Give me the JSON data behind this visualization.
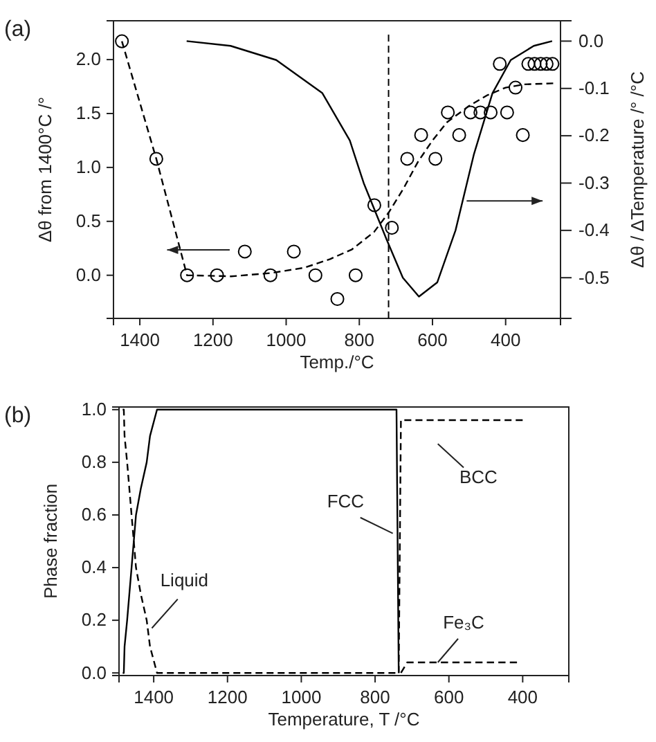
{
  "chart_data": [
    {
      "type": "scatter",
      "title": "(a)",
      "xlabel": "Temp./°C",
      "ylabel": "Δθ  from 1400°C /°",
      "y2label": "Δθ / ΔTemperature  /° /°C",
      "legend": false,
      "grid": false,
      "xlim": [
        1472,
        250
      ],
      "xticks": [
        1400,
        1200,
        1000,
        800,
        600,
        400
      ],
      "ylim": [
        -0.4,
        2.36
      ],
      "yticks": [
        {
          "value": 0,
          "label": "0.0"
        },
        {
          "value": 0.5,
          "label": "0.5"
        },
        {
          "value": 1,
          "label": "1.0"
        },
        {
          "value": 1.5,
          "label": "1.5"
        },
        {
          "value": 2,
          "label": "2.0"
        }
      ],
      "y2lim": [
        -0.586,
        0.043
      ],
      "y2ticks": [
        {
          "value": 0,
          "label": "0.0"
        },
        {
          "value": -0.1,
          "label": "-0.1"
        },
        {
          "value": -0.2,
          "label": "-0.2"
        },
        {
          "value": -0.3,
          "label": "-0.3"
        },
        {
          "value": -0.4,
          "label": "-0.4"
        },
        {
          "value": -0.5,
          "label": "-0.5"
        }
      ],
      "ref_lines": [
        {
          "axis": "x",
          "value": 720,
          "line_style": "dashed",
          "color": "#000000"
        }
      ],
      "series": [
        {
          "type": "scatter",
          "marker": "circle",
          "color": "#000000",
          "x": [
            1449,
            1355,
            1271,
            1189,
            1113,
            1043,
            979,
            920,
            860,
            810,
            759,
            711,
            669,
            631,
            592,
            558,
            527,
            496,
            469,
            441,
            416,
            396,
            373,
            353,
            338,
            321,
            304,
            288,
            272
          ],
          "values": [
            2.17,
            1.08,
            0,
            0,
            0.22,
            0,
            0.22,
            0,
            -0.22,
            0,
            0.65,
            0.44,
            1.08,
            1.3,
            1.08,
            1.51,
            1.3,
            1.51,
            1.51,
            1.51,
            1.96,
            1.51,
            1.74,
            1.3,
            1.96,
            1.96,
            1.96,
            1.96,
            1.96
          ]
        },
        {
          "type": "line",
          "marker": "none",
          "line_style": "dashed",
          "color": "#000000",
          "x": [
            1449,
            1355,
            1271,
            1150,
            1043,
            950,
            880,
            820,
            760,
            720,
            680,
            640,
            600,
            560,
            500,
            450,
            400,
            350,
            270
          ],
          "values": [
            2.17,
            1.08,
            0,
            -0.01,
            0.02,
            0.07,
            0.15,
            0.24,
            0.4,
            0.58,
            0.8,
            1.05,
            1.25,
            1.42,
            1.57,
            1.67,
            1.74,
            1.77,
            1.78
          ]
        },
        {
          "type": "line",
          "marker": "none",
          "line_style": "solid",
          "axis": "y2",
          "color": "#000000",
          "x": [
            1272,
            1152,
            1027,
            901,
            826,
            788,
            725,
            681,
            637,
            587,
            537,
            487,
            436,
            386,
            323,
            273
          ],
          "values": [
            0,
            -0.01,
            -0.04,
            -0.11,
            -0.21,
            -0.3,
            -0.42,
            -0.5,
            -0.54,
            -0.51,
            -0.4,
            -0.24,
            -0.11,
            -0.04,
            -0.01,
            0
          ]
        }
      ]
    },
    {
      "type": "line",
      "title": "(b)",
      "xlabel": "Temperature, T  /°C",
      "ylabel": "Phase fraction",
      "legend": false,
      "grid": false,
      "xlim": [
        1494,
        275
      ],
      "xticks": [
        1400,
        1200,
        1000,
        800,
        600,
        400
      ],
      "ylim": [
        -0.01,
        1.01
      ],
      "yticks": [
        {
          "value": 0,
          "label": "0.0"
        },
        {
          "value": 0.2,
          "label": "0.2"
        },
        {
          "value": 0.4,
          "label": "0.4"
        },
        {
          "value": 0.6,
          "label": "0.6"
        },
        {
          "value": 0.8,
          "label": "0.8"
        },
        {
          "value": 1,
          "label": "1.0"
        }
      ],
      "series": [
        {
          "name": "Liquid",
          "line_style": "dashed",
          "color": "#000000",
          "x": [
            1484,
            1481,
            1479,
            1472,
            1460,
            1454,
            1448,
            1435,
            1419,
            1410,
            1391,
            1000,
            745
          ],
          "values": [
            1,
            1,
            0.9,
            0.8,
            0.6,
            0.5,
            0.4,
            0.3,
            0.2,
            0.1,
            0,
            0,
            0
          ]
        },
        {
          "name": "FCC",
          "line_style": "solid",
          "color": "#000000",
          "x": [
            1484,
            1481,
            1479,
            1472,
            1460,
            1454,
            1448,
            1435,
            1419,
            1410,
            1391,
            742,
            736
          ],
          "values": [
            0,
            0,
            0.1,
            0.2,
            0.4,
            0.5,
            0.6,
            0.7,
            0.8,
            0.9,
            1,
            1,
            0
          ]
        },
        {
          "name": "BCC",
          "line_style": "dashed",
          "color": "#000000",
          "x": [
            736,
            730,
            400
          ],
          "values": [
            0,
            0.96,
            0.96
          ]
        },
        {
          "name": "Fe₃C",
          "line_style": "dashed",
          "color": "#000000",
          "x": [
            730,
            713,
            415
          ],
          "values": [
            0,
            0.04,
            0.04
          ]
        }
      ]
    }
  ]
}
